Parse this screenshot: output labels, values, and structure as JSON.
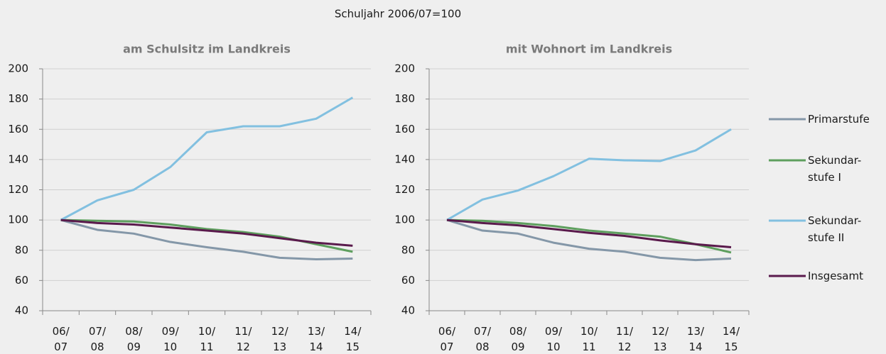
{
  "title": "Schuljahr 2006/07=100",
  "legend": [
    {
      "name": [
        "Primarstufe"
      ],
      "color": "#8497a8"
    },
    {
      "name": [
        "Sekundar-",
        "stufe I"
      ],
      "color": "#5e9f5e"
    },
    {
      "name": [
        "Sekundar-",
        "stufe II"
      ],
      "color": "#82c0e0"
    },
    {
      "name": [
        "Insgesamt"
      ],
      "color": "#5a1a4c"
    }
  ],
  "chart_data": [
    {
      "type": "line",
      "title": "am Schulsitz im Landkreis",
      "categories": [
        [
          "06/",
          "07"
        ],
        [
          "07/",
          "08"
        ],
        [
          "08/",
          "09"
        ],
        [
          "09/",
          "10"
        ],
        [
          "10/",
          "11"
        ],
        [
          "11/",
          "12"
        ],
        [
          "12/",
          "13"
        ],
        [
          "13/",
          "14"
        ],
        [
          "14/",
          "15"
        ]
      ],
      "ylim": [
        40,
        200
      ],
      "yticks": [
        40,
        60,
        80,
        100,
        120,
        140,
        160,
        180,
        200
      ],
      "grid": true,
      "series": [
        {
          "values": [
            100,
            93.5,
            91,
            85.5,
            82,
            79,
            75,
            74,
            74.5
          ]
        },
        {
          "values": [
            100,
            99.5,
            99,
            97,
            94,
            92,
            89,
            84,
            79
          ]
        },
        {
          "values": [
            100,
            113,
            120,
            135,
            158,
            162,
            162,
            167,
            181
          ]
        },
        {
          "values": [
            100,
            98,
            97,
            95,
            93,
            91,
            88,
            85,
            83
          ]
        }
      ]
    },
    {
      "type": "line",
      "title": "mit Wohnort im Landkreis",
      "categories": [
        [
          "06/",
          "07"
        ],
        [
          "07/",
          "08"
        ],
        [
          "08/",
          "09"
        ],
        [
          "09/",
          "10"
        ],
        [
          "10/",
          "11"
        ],
        [
          "11/",
          "12"
        ],
        [
          "12/",
          "13"
        ],
        [
          "13/",
          "14"
        ],
        [
          "14/",
          "15"
        ]
      ],
      "ylim": [
        40,
        200
      ],
      "yticks": [
        40,
        60,
        80,
        100,
        120,
        140,
        160,
        180,
        200
      ],
      "grid": true,
      "series": [
        {
          "values": [
            100,
            93,
            91,
            85,
            81,
            79,
            75,
            73.5,
            74.5
          ]
        },
        {
          "values": [
            100,
            99.5,
            98,
            96,
            93,
            91,
            89,
            84,
            78.5
          ]
        },
        {
          "values": [
            100,
            113.5,
            119.5,
            129,
            140.5,
            139.5,
            139,
            146,
            160
          ]
        },
        {
          "values": [
            100,
            98,
            96.5,
            94,
            91.5,
            89.5,
            86.5,
            84,
            82
          ]
        }
      ]
    }
  ]
}
